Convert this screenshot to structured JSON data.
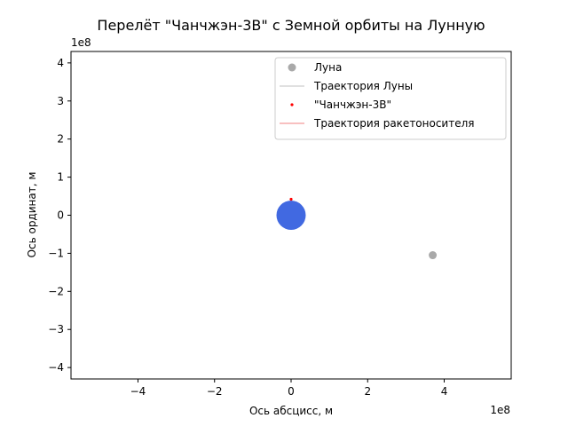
{
  "chart_data": {
    "type": "scatter",
    "title": "Перелёт \"Чанчжэн-3В\" с Земной орбиты на Лунную",
    "xlabel": "Ось абсцисс, м",
    "ylabel": "Ось ординат, м",
    "x_offset_text": "1e8",
    "y_offset_text": "1e8",
    "xlim": [
      -5.75,
      5.75
    ],
    "ylim": [
      -4.3,
      4.3
    ],
    "xticks": [
      -4,
      -2,
      0,
      2,
      4
    ],
    "xtick_labels": [
      "−4",
      "−2",
      "0",
      "2",
      "4"
    ],
    "yticks": [
      -4,
      -3,
      -2,
      -1,
      0,
      1,
      2,
      3,
      4
    ],
    "ytick_labels": [
      "−4",
      "−3",
      "−2",
      "−1",
      "0",
      "1",
      "2",
      "3",
      "4"
    ],
    "grid": false,
    "legend_position": "top-right",
    "earth": {
      "x": 0,
      "y": 0,
      "color": "#4169e1"
    },
    "series": [
      {
        "name": "Луна",
        "kind": "marker",
        "color": "#a9a9a9",
        "points": [
          [
            3.7,
            -1.05
          ]
        ]
      },
      {
        "name": "Траектория Луны",
        "kind": "line",
        "color": "#c0c0c0",
        "points": []
      },
      {
        "name": "\"Чанчжэн-3В\"",
        "kind": "marker",
        "color": "#ff0000",
        "points": [
          [
            0.0,
            0.42
          ]
        ]
      },
      {
        "name": "Траектория ракетоносителя",
        "kind": "line",
        "color": "#f08080",
        "points": []
      }
    ]
  }
}
